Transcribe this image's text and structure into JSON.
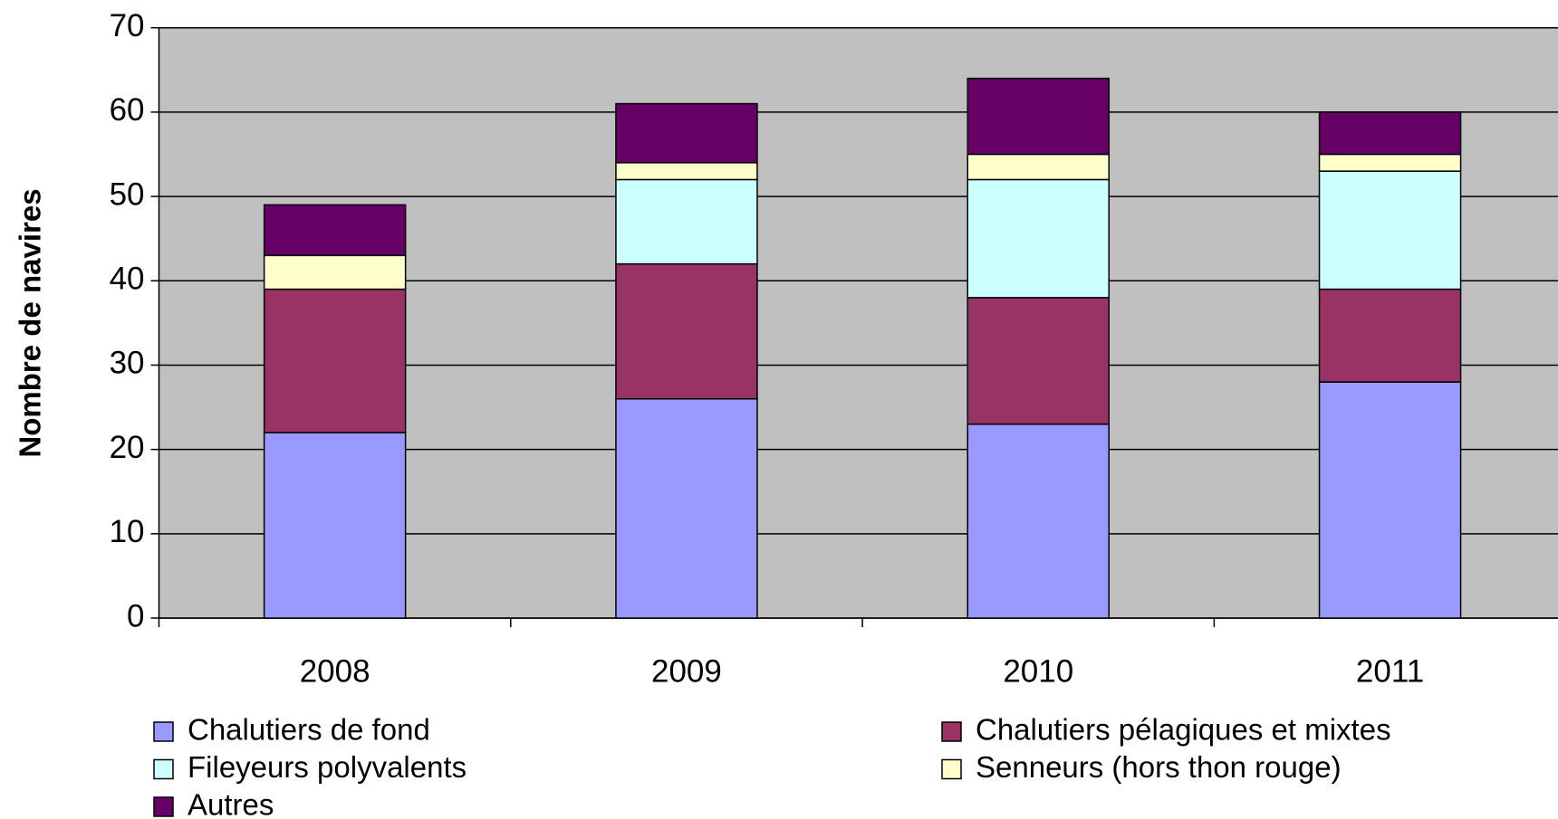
{
  "chart_data": {
    "type": "stacked_bar",
    "y_label": "Nombre de navires",
    "categories": [
      "2008",
      "2009",
      "2010",
      "2011"
    ],
    "series": [
      {
        "name": "Chalutiers de fond",
        "color": "#9999ff",
        "values": [
          22,
          26,
          23,
          28
        ]
      },
      {
        "name": "Chalutiers pélagiques et mixtes",
        "color": "#993366",
        "values": [
          17,
          16,
          15,
          11
        ]
      },
      {
        "name": "Fileyeurs polyvalents",
        "color": "#ccffff",
        "values": [
          0,
          10,
          14,
          14
        ]
      },
      {
        "name": "Senneurs (hors thon rouge)",
        "color": "#ffffcc",
        "values": [
          4,
          2,
          3,
          2
        ]
      },
      {
        "name": "Autres",
        "color": "#660066",
        "values": [
          6,
          7,
          9,
          5
        ]
      }
    ],
    "ylim": [
      0,
      70
    ],
    "yticks": [
      0,
      10,
      20,
      30,
      40,
      50,
      60,
      70
    ],
    "grid": true,
    "legend": "bottom"
  }
}
